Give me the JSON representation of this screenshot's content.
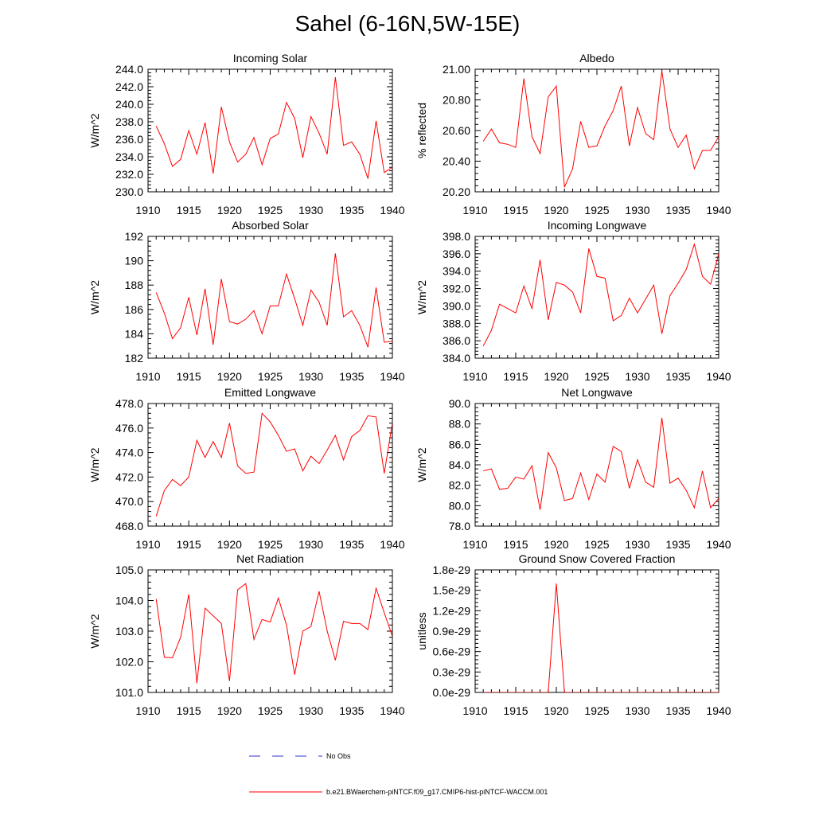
{
  "title": "Sahel (6-16N,5W-15E)",
  "colors": {
    "series": "#ff0000",
    "no_obs": "#3333cc"
  },
  "legend": {
    "no_obs_label": "No Obs",
    "model_label": "b.e21.BWaerchem-piNTCF.f09_g17.CMIP6-hist-piNTCF-WACCM.001"
  },
  "chart_data": [
    {
      "type": "line",
      "title": "Incoming Solar",
      "ylabel": "W/m^2",
      "xlim": [
        1910,
        1940
      ],
      "ylim": [
        230,
        244
      ],
      "xticks": [
        1910,
        1915,
        1920,
        1925,
        1930,
        1935,
        1940
      ],
      "yticks": [
        230,
        232,
        234,
        236,
        238,
        240,
        242,
        244
      ],
      "ytick_labels": [
        "230.0",
        "232.0",
        "234.0",
        "236.0",
        "238.0",
        "240.0",
        "242.0",
        "244.0"
      ],
      "x": [
        1911,
        1912,
        1913,
        1914,
        1915,
        1916,
        1917,
        1918,
        1919,
        1920,
        1921,
        1922,
        1923,
        1924,
        1925,
        1926,
        1927,
        1928,
        1929,
        1930,
        1931,
        1932,
        1933,
        1934,
        1935,
        1936,
        1937,
        1938,
        1939,
        1940
      ],
      "y": [
        237.5,
        235.5,
        232.9,
        233.7,
        237.0,
        234.3,
        237.9,
        232.1,
        239.7,
        235.7,
        233.4,
        234.3,
        236.2,
        233.1,
        236.1,
        236.6,
        240.2,
        238.4,
        233.9,
        238.6,
        236.7,
        234.3,
        243.1,
        235.3,
        235.7,
        234.3,
        231.5,
        238.1,
        232.2,
        232.8
      ]
    },
    {
      "type": "line",
      "title": "Albedo",
      "ylabel": "% reflected",
      "xlim": [
        1910,
        1940
      ],
      "ylim": [
        20.2,
        21.0
      ],
      "xticks": [
        1910,
        1915,
        1920,
        1925,
        1930,
        1935,
        1940
      ],
      "yticks": [
        20.2,
        20.4,
        20.6,
        20.8,
        21.0
      ],
      "ytick_labels": [
        "20.20",
        "20.40",
        "20.60",
        "20.80",
        "21.00"
      ],
      "x": [
        1911,
        1912,
        1913,
        1914,
        1915,
        1916,
        1917,
        1918,
        1919,
        1920,
        1921,
        1922,
        1923,
        1924,
        1925,
        1926,
        1927,
        1928,
        1929,
        1930,
        1931,
        1932,
        1933,
        1934,
        1935,
        1936,
        1937,
        1938,
        1939,
        1940
      ],
      "y": [
        20.53,
        20.61,
        20.52,
        20.51,
        20.49,
        20.94,
        20.56,
        20.45,
        20.82,
        20.89,
        20.23,
        20.35,
        20.66,
        20.49,
        20.5,
        20.63,
        20.73,
        20.89,
        20.5,
        20.75,
        20.58,
        20.54,
        20.99,
        20.61,
        20.49,
        20.57,
        20.35,
        20.47,
        20.47,
        20.56
      ]
    },
    {
      "type": "line",
      "title": "Absorbed Solar",
      "ylabel": "W/m^2",
      "xlim": [
        1910,
        1940
      ],
      "ylim": [
        182,
        192
      ],
      "xticks": [
        1910,
        1915,
        1920,
        1925,
        1930,
        1935,
        1940
      ],
      "yticks": [
        182,
        184,
        186,
        188,
        190,
        192
      ],
      "ytick_labels": [
        "182",
        "184",
        "186",
        "188",
        "190",
        "192"
      ],
      "x": [
        1911,
        1912,
        1913,
        1914,
        1915,
        1916,
        1917,
        1918,
        1919,
        1920,
        1921,
        1922,
        1923,
        1924,
        1925,
        1926,
        1927,
        1928,
        1929,
        1930,
        1931,
        1932,
        1933,
        1934,
        1935,
        1936,
        1937,
        1938,
        1939,
        1940
      ],
      "y": [
        187.4,
        185.7,
        183.6,
        184.5,
        187.0,
        183.9,
        187.7,
        183.1,
        188.5,
        185.0,
        184.8,
        185.2,
        185.9,
        184.0,
        186.3,
        186.3,
        188.9,
        186.9,
        184.7,
        187.6,
        186.6,
        184.7,
        190.6,
        185.4,
        185.9,
        184.7,
        182.9,
        187.8,
        183.3,
        183.4
      ]
    },
    {
      "type": "line",
      "title": "Incoming Longwave",
      "ylabel": "W/m^2",
      "xlim": [
        1910,
        1940
      ],
      "ylim": [
        384,
        398
      ],
      "xticks": [
        1910,
        1915,
        1920,
        1925,
        1930,
        1935,
        1940
      ],
      "yticks": [
        384,
        386,
        388,
        390,
        392,
        394,
        396,
        398
      ],
      "ytick_labels": [
        "384.0",
        "386.0",
        "388.0",
        "390.0",
        "392.0",
        "394.0",
        "396.0",
        "398.0"
      ],
      "x": [
        1911,
        1912,
        1913,
        1914,
        1915,
        1916,
        1917,
        1918,
        1919,
        1920,
        1921,
        1922,
        1923,
        1924,
        1925,
        1926,
        1927,
        1928,
        1929,
        1930,
        1931,
        1932,
        1933,
        1934,
        1935,
        1936,
        1937,
        1938,
        1939,
        1940
      ],
      "y": [
        385.4,
        387.2,
        390.2,
        389.7,
        389.2,
        392.3,
        389.7,
        395.3,
        388.4,
        392.7,
        392.4,
        391.6,
        389.2,
        396.6,
        393.4,
        393.2,
        388.3,
        388.9,
        390.9,
        389.2,
        390.8,
        392.4,
        386.8,
        391.2,
        392.6,
        394.2,
        397.1,
        393.4,
        392.5,
        396.0
      ]
    },
    {
      "type": "line",
      "title": "Emitted Longwave",
      "ylabel": "W/m^2",
      "xlim": [
        1910,
        1940
      ],
      "ylim": [
        468,
        478
      ],
      "xticks": [
        1910,
        1915,
        1920,
        1925,
        1930,
        1935,
        1940
      ],
      "yticks": [
        468,
        470,
        472,
        474,
        476,
        478
      ],
      "ytick_labels": [
        "468.0",
        "470.0",
        "472.0",
        "474.0",
        "476.0",
        "478.0"
      ],
      "x": [
        1911,
        1912,
        1913,
        1914,
        1915,
        1916,
        1917,
        1918,
        1919,
        1920,
        1921,
        1922,
        1923,
        1924,
        1925,
        1926,
        1927,
        1928,
        1929,
        1930,
        1931,
        1932,
        1933,
        1934,
        1935,
        1936,
        1937,
        1938,
        1939,
        1940
      ],
      "y": [
        468.8,
        470.9,
        471.8,
        471.3,
        472.0,
        475.0,
        473.6,
        474.9,
        473.6,
        476.4,
        472.9,
        472.3,
        472.4,
        477.2,
        476.5,
        475.4,
        474.1,
        474.3,
        472.5,
        473.7,
        473.1,
        474.2,
        475.4,
        473.4,
        475.3,
        475.8,
        477.0,
        476.9,
        472.3,
        476.4
      ]
    },
    {
      "type": "line",
      "title": "Net Longwave",
      "ylabel": "W/m^2",
      "xlim": [
        1910,
        1940
      ],
      "ylim": [
        78,
        90
      ],
      "xticks": [
        1910,
        1915,
        1920,
        1925,
        1930,
        1935,
        1940
      ],
      "yticks": [
        78,
        80,
        82,
        84,
        86,
        88,
        90
      ],
      "ytick_labels": [
        "78.0",
        "80.0",
        "82.0",
        "84.0",
        "86.0",
        "88.0",
        "90.0"
      ],
      "x": [
        1911,
        1912,
        1913,
        1914,
        1915,
        1916,
        1917,
        1918,
        1919,
        1920,
        1921,
        1922,
        1923,
        1924,
        1925,
        1926,
        1927,
        1928,
        1929,
        1930,
        1931,
        1932,
        1933,
        1934,
        1935,
        1936,
        1937,
        1938,
        1939,
        1940
      ],
      "y": [
        83.4,
        83.6,
        81.6,
        81.7,
        82.8,
        82.6,
        83.9,
        79.6,
        85.2,
        83.7,
        80.5,
        80.7,
        83.2,
        80.6,
        83.1,
        82.3,
        85.8,
        85.3,
        81.7,
        84.5,
        82.3,
        81.8,
        88.6,
        82.2,
        82.7,
        81.5,
        79.8,
        83.4,
        79.8,
        80.7
      ]
    },
    {
      "type": "line",
      "title": "Net Radiation",
      "ylabel": "W/m^2",
      "xlim": [
        1910,
        1940
      ],
      "ylim": [
        101,
        105
      ],
      "xticks": [
        1910,
        1915,
        1920,
        1925,
        1930,
        1935,
        1940
      ],
      "yticks": [
        101,
        102,
        103,
        104,
        105
      ],
      "ytick_labels": [
        "101.0",
        "102.0",
        "103.0",
        "104.0",
        "105.0"
      ],
      "x": [
        1911,
        1912,
        1913,
        1914,
        1915,
        1916,
        1917,
        1918,
        1919,
        1920,
        1921,
        1922,
        1923,
        1924,
        1925,
        1926,
        1927,
        1928,
        1929,
        1930,
        1931,
        1932,
        1933,
        1934,
        1935,
        1936,
        1937,
        1938,
        1939,
        1940
      ],
      "y": [
        104.05,
        102.15,
        102.13,
        102.8,
        104.2,
        101.3,
        103.75,
        103.5,
        103.25,
        101.37,
        104.35,
        104.55,
        102.73,
        103.38,
        103.3,
        104.08,
        103.2,
        101.58,
        103.0,
        103.15,
        104.3,
        103.0,
        102.05,
        103.32,
        103.25,
        103.25,
        103.05,
        104.4,
        103.6,
        102.83
      ]
    },
    {
      "type": "line",
      "title": "Ground Snow Covered Fraction",
      "ylabel": "unitless",
      "xlim": [
        1910,
        1940
      ],
      "ylim": [
        0,
        1.8e-29
      ],
      "xticks": [
        1910,
        1915,
        1920,
        1925,
        1930,
        1935,
        1940
      ],
      "yticks": [
        0,
        3e-30,
        6e-30,
        9e-30,
        1.2e-29,
        1.5e-29,
        1.8e-29
      ],
      "ytick_labels": [
        "0.0e-29",
        "0.3e-29",
        "0.6e-29",
        "0.9e-29",
        "1.2e-29",
        "1.5e-29",
        "1.8e-29"
      ],
      "x": [
        1911,
        1912,
        1913,
        1914,
        1915,
        1916,
        1917,
        1918,
        1919,
        1920,
        1921,
        1922,
        1923,
        1924,
        1925,
        1926,
        1927,
        1928,
        1929,
        1930,
        1931,
        1932,
        1933,
        1934,
        1935,
        1936,
        1937,
        1938,
        1939,
        1940
      ],
      "y": [
        0,
        0,
        0,
        0,
        0,
        0,
        0,
        0,
        0,
        1.6e-29,
        0,
        0,
        0,
        0,
        0,
        0,
        0,
        0,
        0,
        0,
        0,
        0,
        0,
        0,
        0,
        0,
        0,
        0,
        0,
        0
      ]
    }
  ]
}
